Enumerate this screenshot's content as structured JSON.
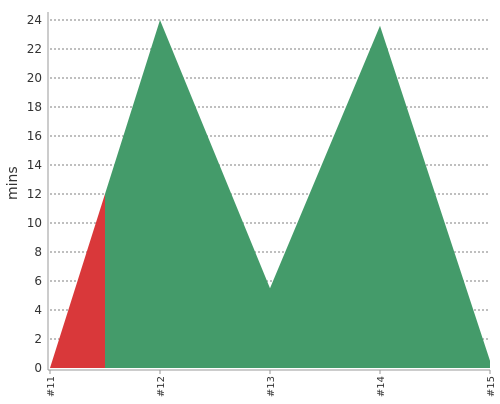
{
  "chart_data": {
    "type": "area",
    "ylabel": "mins",
    "xlabel": "",
    "title": "",
    "ylim": [
      0,
      24
    ],
    "yticks": [
      0,
      2,
      4,
      6,
      8,
      10,
      12,
      14,
      16,
      18,
      20,
      22,
      24
    ],
    "x": [
      "#11",
      "#12",
      "#13",
      "#14",
      "#15"
    ],
    "values": [
      0,
      24,
      5.5,
      23.6,
      0.5
    ],
    "grid": true,
    "segments": [
      {
        "from": "#11",
        "to_fraction": 0.5,
        "color": "#d9383a"
      },
      {
        "from_fraction": 0.5,
        "to": "#15",
        "color": "#449b6a"
      }
    ],
    "colors": {
      "fail": "#d9383a",
      "success": "#449b6a",
      "grid": "#555555",
      "axis": "#999999"
    }
  }
}
